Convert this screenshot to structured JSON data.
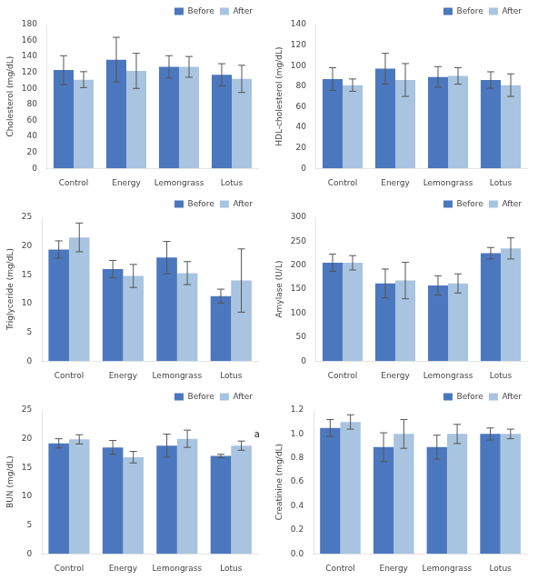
{
  "chart_data": [
    {
      "type": "bar",
      "categories": [
        "Control",
        "Energy",
        "Lemongrass",
        "Lotus"
      ],
      "series": [
        {
          "name": "Before",
          "color": "#4B77BE",
          "values": [
            123,
            136,
            127,
            117
          ],
          "errors": [
            18,
            28,
            14,
            14
          ]
        },
        {
          "name": "After",
          "color": "#A8C4E0",
          "values": [
            111,
            122,
            127,
            112
          ],
          "errors": [
            10,
            22,
            13,
            17
          ]
        }
      ],
      "ylabel": "Cholesterol (mg/dL)",
      "ylim": [
        0,
        180
      ],
      "yticks": [
        0,
        20,
        40,
        60,
        80,
        100,
        120,
        140,
        160,
        180
      ],
      "grid": false,
      "legend": "upper right"
    },
    {
      "type": "bar",
      "categories": [
        "Control",
        "Energy",
        "Lemongrass",
        "Lotus"
      ],
      "series": [
        {
          "name": "Before",
          "color": "#4B77BE",
          "values": [
            87,
            97,
            89,
            86
          ],
          "errors": [
            11,
            15,
            10,
            8
          ]
        },
        {
          "name": "After",
          "color": "#A8C4E0",
          "values": [
            81,
            86,
            90,
            81
          ],
          "errors": [
            6,
            16,
            8,
            11
          ]
        }
      ],
      "ylabel": "HDL-cholesterol (mg/dL)",
      "ylim": [
        0,
        140
      ],
      "yticks": [
        0,
        20,
        40,
        60,
        80,
        100,
        120,
        140
      ],
      "grid": false,
      "legend": "upper right"
    },
    {
      "type": "bar",
      "categories": [
        "Control",
        "Energy",
        "Lemongrass",
        "Lotus"
      ],
      "series": [
        {
          "name": "Before",
          "color": "#4B77BE",
          "values": [
            19.4,
            16.0,
            18.0,
            11.3
          ],
          "errors": [
            1.5,
            1.5,
            2.8,
            1.2
          ]
        },
        {
          "name": "After",
          "color": "#A8C4E0",
          "values": [
            21.5,
            14.8,
            15.3,
            14.0
          ],
          "errors": [
            2.5,
            2.0,
            2.0,
            5.5
          ]
        }
      ],
      "ylabel": "Triglyceride (mg/dL)",
      "ylim": [
        0,
        25
      ],
      "yticks": [
        0,
        5,
        10,
        15,
        20,
        25
      ],
      "grid": false,
      "legend": "upper right"
    },
    {
      "type": "bar",
      "categories": [
        "Control",
        "Energy",
        "Lemongrass",
        "Lotus"
      ],
      "series": [
        {
          "name": "Before",
          "color": "#4B77BE",
          "values": [
            205,
            162,
            158,
            225
          ],
          "errors": [
            18,
            30,
            20,
            12
          ]
        },
        {
          "name": "After",
          "color": "#A8C4E0",
          "values": [
            205,
            168,
            162,
            235
          ],
          "errors": [
            15,
            38,
            20,
            22
          ]
        }
      ],
      "ylabel": "Amylase (U/L)",
      "ylim": [
        0,
        300
      ],
      "yticks": [
        0,
        50,
        100,
        150,
        200,
        250,
        300
      ],
      "grid": false,
      "legend": "upper right"
    },
    {
      "type": "bar",
      "categories": [
        "Control",
        "Energy",
        "Lemongrass",
        "Lotus"
      ],
      "series": [
        {
          "name": "Before",
          "color": "#4B77BE",
          "values": [
            19.2,
            18.5,
            18.8,
            17.0
          ],
          "errors": [
            0.8,
            1.2,
            2.0,
            0.3
          ]
        },
        {
          "name": "After",
          "color": "#A8C4E0",
          "values": [
            19.9,
            16.8,
            20.0,
            18.8
          ],
          "errors": [
            0.8,
            1.0,
            1.5,
            0.8
          ]
        }
      ],
      "ylabel": "BUN (mg/dL)",
      "ylim": [
        0,
        25
      ],
      "yticks": [
        0,
        5,
        10,
        15,
        20,
        25
      ],
      "annotations": [
        {
          "text": "a",
          "category": "Lotus",
          "series": "After"
        }
      ],
      "grid": false,
      "legend": "upper right"
    },
    {
      "type": "bar",
      "categories": [
        "Control",
        "Energy",
        "Lemongrass",
        "Lotus"
      ],
      "series": [
        {
          "name": "Before",
          "color": "#4B77BE",
          "values": [
            1.05,
            0.89,
            0.89,
            1.0
          ],
          "errors": [
            0.07,
            0.12,
            0.1,
            0.05
          ]
        },
        {
          "name": "After",
          "color": "#A8C4E0",
          "values": [
            1.1,
            1.0,
            1.0,
            1.0
          ],
          "errors": [
            0.06,
            0.12,
            0.08,
            0.04
          ]
        }
      ],
      "ylabel": "Creatinine (mg/dL)",
      "ylim": [
        0,
        1.2
      ],
      "yticks": [
        {
          "value": 0.0,
          "label": "0.0"
        },
        0.2,
        0.4,
        0.6,
        0.8,
        {
          "value": 1.0,
          "label": "1.0"
        },
        1.2
      ],
      "grid": false,
      "legend": "upper right"
    }
  ]
}
